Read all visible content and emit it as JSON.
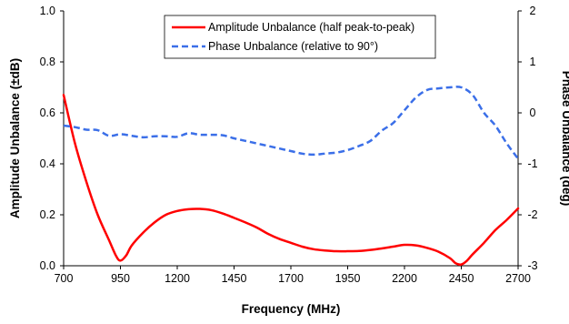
{
  "chart_data": {
    "type": "line",
    "title": "",
    "xlabel": "Frequency (MHz)",
    "ylabel": "Amplitude Unbalance (±dB)",
    "y2label": "Phase Unbalance (deg)",
    "xlim": [
      700,
      2700
    ],
    "ylim": [
      0,
      1.0
    ],
    "y2lim": [
      -3,
      2
    ],
    "x_ticks": [
      "700",
      "950",
      "1200",
      "1450",
      "1700",
      "1950",
      "2200",
      "2450",
      "2700"
    ],
    "y_ticks": [
      "0.0",
      "0.2",
      "0.4",
      "0.6",
      "0.8",
      "1.0"
    ],
    "y2_ticks": [
      "-3",
      "-2",
      "-1",
      "0",
      "1",
      "2"
    ],
    "grid": false,
    "legend_position": "top-center",
    "series": [
      {
        "name": "Amplitude Unbalance (half peak-to-peak)",
        "axis": "left",
        "color": "#ff0000",
        "style": "solid",
        "x": [
          700,
          750,
          800,
          850,
          900,
          930,
          950,
          975,
          1000,
          1050,
          1100,
          1150,
          1200,
          1250,
          1300,
          1350,
          1400,
          1450,
          1500,
          1550,
          1600,
          1650,
          1700,
          1750,
          1800,
          1850,
          1900,
          1950,
          2000,
          2050,
          2100,
          2150,
          2200,
          2250,
          2300,
          2350,
          2400,
          2425,
          2450,
          2475,
          2500,
          2550,
          2600,
          2650,
          2700
        ],
        "y": [
          0.67,
          0.48,
          0.33,
          0.2,
          0.1,
          0.04,
          0.02,
          0.04,
          0.08,
          0.13,
          0.17,
          0.2,
          0.215,
          0.222,
          0.223,
          0.218,
          0.205,
          0.188,
          0.17,
          0.15,
          0.125,
          0.105,
          0.09,
          0.075,
          0.065,
          0.06,
          0.057,
          0.057,
          0.058,
          0.062,
          0.068,
          0.075,
          0.082,
          0.08,
          0.07,
          0.055,
          0.03,
          0.01,
          0.005,
          0.02,
          0.045,
          0.09,
          0.14,
          0.18,
          0.225
        ]
      },
      {
        "name": "Phase Unbalance (relative to 90°)",
        "axis": "right",
        "color": "#3b6fe8",
        "style": "dashed",
        "x": [
          700,
          750,
          800,
          850,
          900,
          950,
          1000,
          1050,
          1100,
          1150,
          1200,
          1250,
          1300,
          1350,
          1400,
          1450,
          1500,
          1550,
          1600,
          1650,
          1700,
          1750,
          1800,
          1850,
          1900,
          1950,
          2000,
          2050,
          2100,
          2150,
          2200,
          2250,
          2300,
          2350,
          2400,
          2450,
          2500,
          2550,
          2600,
          2650,
          2700
        ],
        "y": [
          -0.25,
          -0.28,
          -0.33,
          -0.34,
          -0.45,
          -0.42,
          -0.45,
          -0.48,
          -0.46,
          -0.46,
          -0.47,
          -0.4,
          -0.43,
          -0.43,
          -0.44,
          -0.5,
          -0.55,
          -0.6,
          -0.65,
          -0.7,
          -0.75,
          -0.8,
          -0.82,
          -0.8,
          -0.78,
          -0.73,
          -0.65,
          -0.55,
          -0.35,
          -0.2,
          0.05,
          0.3,
          0.45,
          0.48,
          0.5,
          0.5,
          0.35,
          0.0,
          -0.25,
          -0.6,
          -0.9
        ]
      }
    ]
  }
}
